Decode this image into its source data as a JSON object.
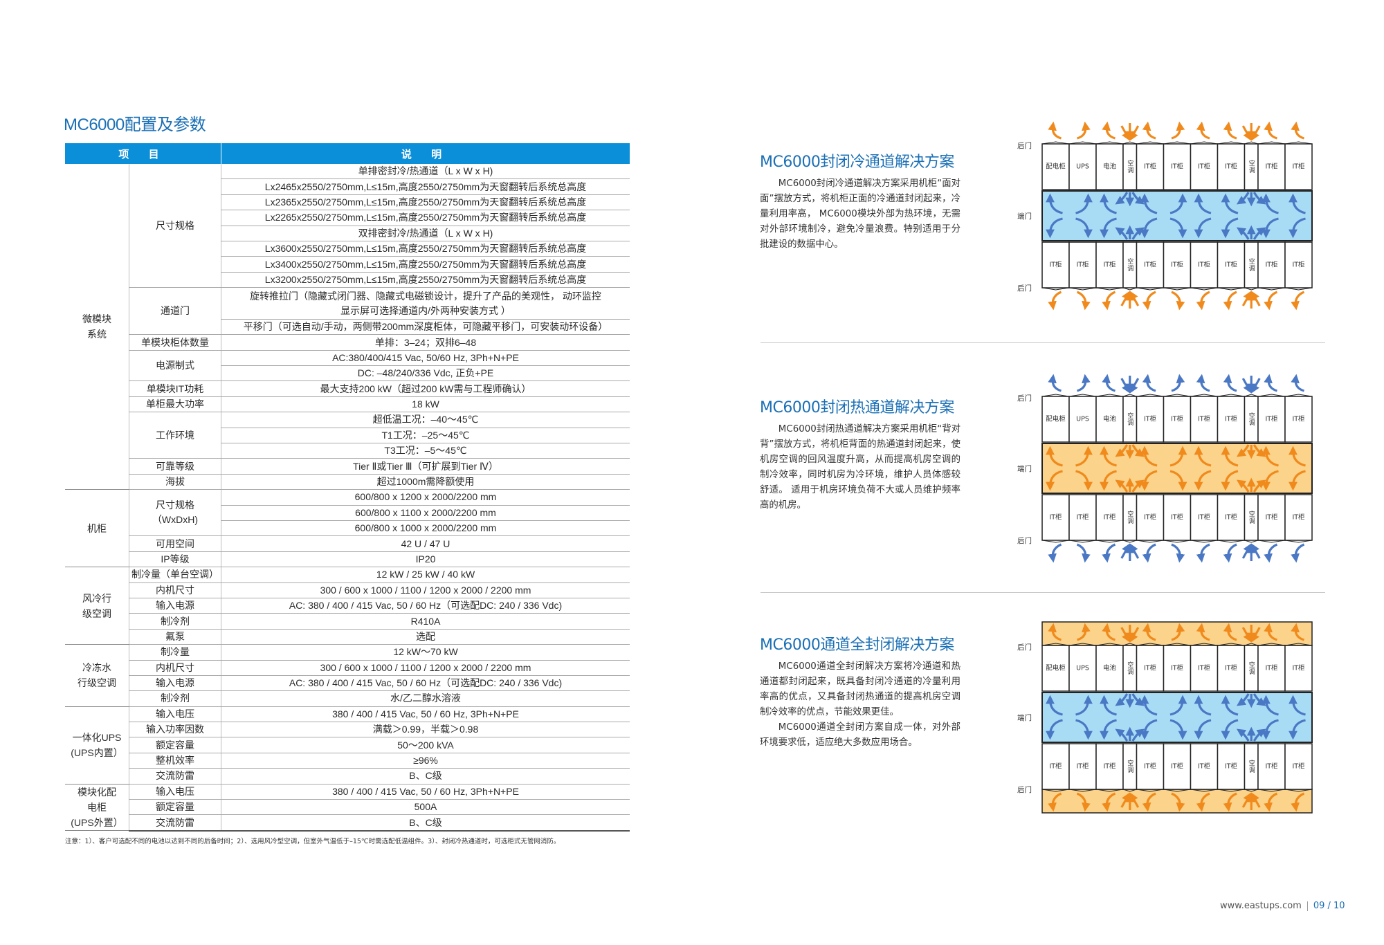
{
  "page_title": "MC6000配置及参数",
  "table": {
    "headers": [
      "项 目",
      "说 明"
    ],
    "groups": [
      {
        "name": "微模块\n系统",
        "items": [
          {
            "name": "尺寸规格",
            "values": [
              "单排密封冷/热通道（L x W x H)",
              "Lx2465x2550/2750mm,L≤15m,高度2550/2750mm为天窗翻转后系统总高度",
              "Lx2365x2550/2750mm,L≤15m,高度2550/2750mm为天窗翻转后系统总高度",
              "Lx2265x2550/2750mm,L≤15m,高度2550/2750mm为天窗翻转后系统总高度",
              "双排密封冷/热通道（L x W x H)",
              "Lx3600x2550/2750mm,L≤15m,高度2550/2750mm为天窗翻转后系统总高度",
              "Lx3400x2550/2750mm,L≤15m,高度2550/2750mm为天窗翻转后系统总高度",
              "Lx3200x2550/2750mm,L≤15m,高度2550/2750mm为天窗翻转后系统总高度"
            ]
          },
          {
            "name": "通道门",
            "values": [
              "旋转推拉门（隐藏式闭门器、隐藏式电磁锁设计，提升了产品的美观性， 动环监控\n显示屏可选择通道内/外两种安装方式 ）",
              "平移门（可选自动/手动，两侧带200mm深度柜体，可隐藏平移门，可安装动环设备）"
            ]
          },
          {
            "name": "单模块柜体数量",
            "values": [
              "单排：3–24；双排6–48"
            ]
          },
          {
            "name": "电源制式",
            "values": [
              "AC:380/400/415 Vac, 50/60 Hz, 3Ph+N+PE",
              "DC: –48/240/336 Vdc, 正负+PE"
            ]
          },
          {
            "name": "单模块IT功耗",
            "values": [
              "最大支持200 kW（超过200 kW需与工程师确认）"
            ]
          },
          {
            "name": "单柜最大功率",
            "values": [
              "18 kW"
            ]
          },
          {
            "name": "工作环境",
            "values": [
              "超低温工况：–40～45℃",
              "T1工况：–25～45℃",
              "T3工况：–5～45℃"
            ]
          },
          {
            "name": "可靠等级",
            "values": [
              "Tier Ⅱ或Tier Ⅲ（可扩展到Tier Ⅳ）"
            ]
          },
          {
            "name": "海拔",
            "values": [
              "超过1000m需降额使用"
            ]
          }
        ]
      },
      {
        "name": "机柜",
        "items": [
          {
            "name": "尺寸规格\n（WxDxH)",
            "values": [
              "600/800 x 1200 x 2000/2200 mm",
              "600/800 x 1100 x 2000/2200 mm",
              "600/800 x 1000 x 2000/2200 mm"
            ]
          },
          {
            "name": "可用空间",
            "values": [
              "42 U / 47 U"
            ]
          },
          {
            "name": "IP等级",
            "values": [
              "IP20"
            ]
          }
        ]
      },
      {
        "name": "风冷行\n级空调",
        "items": [
          {
            "name": "制冷量（单台空调）",
            "values": [
              "12 kW / 25 kW / 40 kW"
            ]
          },
          {
            "name": "内机尺寸",
            "values": [
              "300 / 600 x 1000 / 1100 / 1200 x 2000 / 2200 mm"
            ]
          },
          {
            "name": "输入电源",
            "values": [
              "AC: 380 / 400 / 415 Vac, 50 / 60 Hz（可选配DC: 240 / 336 Vdc)"
            ]
          },
          {
            "name": "制冷剂",
            "values": [
              "R410A"
            ]
          },
          {
            "name": "氟泵",
            "values": [
              "选配"
            ]
          }
        ]
      },
      {
        "name": "冷冻水\n行级空调",
        "items": [
          {
            "name": "制冷量",
            "values": [
              "12 kW～70 kW"
            ]
          },
          {
            "name": "内机尺寸",
            "values": [
              "300 / 600 x 1000 / 1100 / 1200 x 2000 / 2200 mm"
            ]
          },
          {
            "name": "输入电源",
            "values": [
              "AC: 380 / 400 / 415 Vac, 50 / 60 Hz（可选配DC: 240 / 336 Vdc)"
            ]
          },
          {
            "name": "制冷剂",
            "values": [
              "水/乙二醇水溶液"
            ]
          }
        ]
      },
      {
        "name": "一体化UPS\n(UPS内置）",
        "items": [
          {
            "name": "输入电压",
            "values": [
              "380 / 400 / 415 Vac, 50 / 60 Hz, 3Ph+N+PE"
            ]
          },
          {
            "name": "输入功率因数",
            "values": [
              "满载＞0.99，半载＞0.98"
            ]
          },
          {
            "name": "额定容量",
            "values": [
              "50～200 kVA"
            ]
          },
          {
            "name": "整机效率",
            "values": [
              "≥96%"
            ]
          },
          {
            "name": "交流防雷",
            "values": [
              "B、C级"
            ]
          }
        ]
      },
      {
        "name": "模块化配\n电柜\n(UPS外置）",
        "items": [
          {
            "name": "输入电压",
            "values": [
              "380 / 400 / 415 Vac, 50 / 60 Hz, 3Ph+N+PE"
            ]
          },
          {
            "name": "额定容量",
            "values": [
              "500A"
            ]
          },
          {
            "name": "交流防雷",
            "values": [
              "B、C级"
            ]
          }
        ]
      }
    ]
  },
  "note": "注意：1）、客户可选配不同的电池以达到不同的后备时间；2）、选用风冷型空调，但室外气温低于–15℃时需选配低温组件。3）、封闭冷热通道时，可选柜式无管网消防。",
  "solutions": [
    {
      "title": "MC6000封闭冷通道解决方案",
      "paragraphs": [
        "MC6000封闭冷通道解决方案采用机柜“面对面”摆放方式，将机柜正面的冷通道封闭起来，冷量利用率高， MC6000模块外部为热环境，无需对外部环境制冷，避免冷量浪费。特别适用于分批建设的数据中心。"
      ],
      "diagram": {
        "labels": [
          "后门",
          "端门",
          "后门"
        ],
        "top_row": [
          "配电柜",
          "UPS",
          "电池",
          "空调",
          "IT柜",
          "IT柜",
          "IT柜",
          "IT柜",
          "空调",
          "IT柜",
          "IT柜"
        ],
        "bottom_row": [
          "IT柜",
          "IT柜",
          "IT柜",
          "空调",
          "IT柜",
          "IT柜",
          "IT柜",
          "IT柜",
          "空调",
          "IT柜",
          "IT柜"
        ],
        "aisle_color": "#a8dcf5",
        "aisle_arrow_color": "#4a78c4",
        "outer_arrow_color": "#f08a1c",
        "outer_band_color": ""
      }
    },
    {
      "title": "MC6000封闭热通道解决方案",
      "paragraphs": [
        "MC6000封闭热通道解决方案采用机柜“背对背”摆放方式，将机柜背面的热通道封闭起来，使机房空调的回风温度升高，从而提高机房空调的制冷效率，同时机房为冷环境，维护人员体感较舒适。 适用于机房环境负荷不大或人员维护频率高的机房。"
      ],
      "diagram": {
        "labels": [
          "后门",
          "端门",
          "后门"
        ],
        "top_row": [
          "配电柜",
          "UPS",
          "电池",
          "空调",
          "IT柜",
          "IT柜",
          "IT柜",
          "IT柜",
          "空调",
          "IT柜",
          "IT柜"
        ],
        "bottom_row": [
          "IT柜",
          "IT柜",
          "IT柜",
          "空调",
          "IT柜",
          "IT柜",
          "IT柜",
          "IT柜",
          "空调",
          "IT柜",
          "IT柜"
        ],
        "aisle_color": "#fbd38a",
        "aisle_arrow_color": "#f08a1c",
        "outer_arrow_color": "#4a78c4",
        "outer_band_color": ""
      }
    },
    {
      "title": "MC6000通道全封闭解决方案",
      "paragraphs": [
        "MC6000通道全封闭解决方案将冷通道和热通道都封闭起来，既具备封闭冷通道的冷量利用率高的优点，又具备封闭热通道的提高机房空调制冷效率的优点，节能效果更佳。",
        "MC6000通道全封闭方案自成一体，对外部环境要求低，适应绝大多数应用场合。"
      ],
      "diagram": {
        "labels": [
          "后门",
          "端门",
          "后门"
        ],
        "top_row": [
          "配电柜",
          "UPS",
          "电池",
          "空调",
          "IT柜",
          "IT柜",
          "IT柜",
          "IT柜",
          "空调",
          "IT柜",
          "IT柜"
        ],
        "bottom_row": [
          "IT柜",
          "IT柜",
          "IT柜",
          "空调",
          "IT柜",
          "IT柜",
          "IT柜",
          "IT柜",
          "空调",
          "IT柜",
          "IT柜"
        ],
        "aisle_color": "#a8dcf5",
        "aisle_arrow_color": "#4a78c4",
        "outer_arrow_color": "#f08a1c",
        "outer_band_color": "#fbd38a"
      }
    }
  ],
  "footer": {
    "website": "www.eastups.com",
    "page": "09 / 10"
  },
  "colors": {
    "brand_blue": "#1a6fb5",
    "header_blue": "#0b8fd8"
  }
}
